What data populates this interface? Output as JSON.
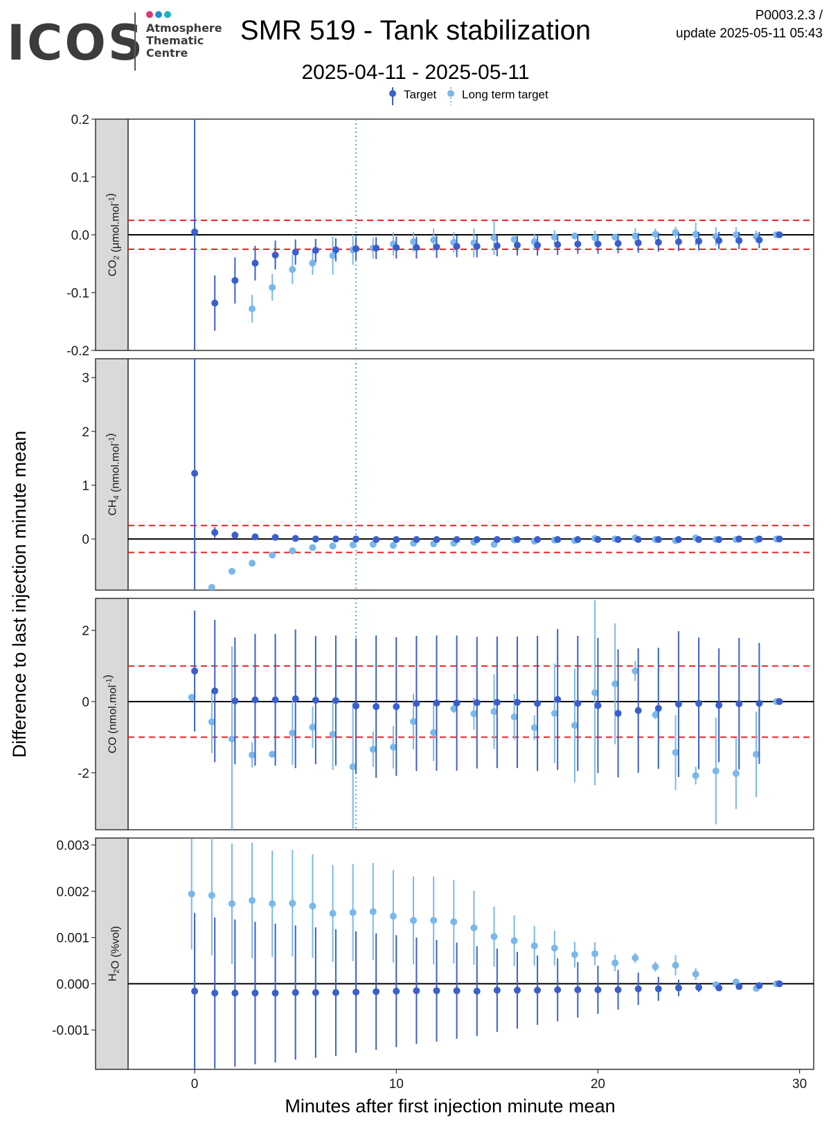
{
  "header": {
    "logo_text": "ICOS",
    "logo_sub": [
      "Atmosphere",
      "Thematic",
      "Centre"
    ],
    "logo_dot_colors": [
      "#e0367a",
      "#1f8ed6",
      "#1fb0c8"
    ],
    "title": "SMR 519 - Tank stabilization",
    "date_range": "2025-04-11 - 2025-05-11",
    "product_code": "P0003.2.3 /",
    "update": "update  2025-05-11 05:43"
  },
  "chart_data": {
    "type": "scatter",
    "legend": {
      "position": "top",
      "entries": [
        {
          "name": "Target",
          "color": "#3a5fcd"
        },
        {
          "name": "Long term target",
          "color": "#79b8ea"
        }
      ]
    },
    "xlabel": "Minutes after first injection minute mean",
    "ylabel": "Difference to last injection minute mean",
    "xlim": [
      -3.3,
      30.7
    ],
    "xticks": [
      0,
      10,
      20,
      30
    ],
    "vline_x": 8,
    "colors": {
      "target": "#3a5fcd",
      "long_term": "#79b8ea",
      "threshold": "#ee1c1c",
      "vline": "#5aaaf0"
    },
    "panels": [
      {
        "strip_label": "CO2 (µmol.mol-1)",
        "strip_parts": [
          [
            "CO",
            ""
          ],
          [
            "2",
            "sub"
          ],
          [
            " (µmol.mol",
            ""
          ],
          [
            "-1",
            "sup"
          ],
          [
            ")",
            ""
          ]
        ],
        "ylim": [
          -0.2,
          0.2
        ],
        "yticks": [
          -0.2,
          -0.1,
          0.0,
          0.1,
          0.2
        ],
        "ytick_labels": [
          "-0.2",
          "-0.1",
          "0.0",
          "0.1",
          "0.2"
        ],
        "threshold": 0.025,
        "vline": true,
        "target": {
          "x": [
            0,
            1,
            2,
            3,
            4,
            5,
            6,
            7,
            8,
            9,
            10,
            11,
            12,
            13,
            14,
            15,
            16,
            17,
            18,
            19,
            20,
            21,
            22,
            23,
            24,
            25,
            26,
            27,
            28,
            29
          ],
          "y": [
            0.005,
            -0.118,
            -0.079,
            -0.049,
            -0.035,
            -0.03,
            -0.027,
            -0.026,
            -0.024,
            -0.023,
            -0.022,
            -0.022,
            -0.021,
            -0.02,
            -0.02,
            -0.019,
            -0.018,
            -0.018,
            -0.017,
            -0.016,
            -0.016,
            -0.015,
            -0.014,
            -0.013,
            -0.012,
            -0.011,
            -0.01,
            -0.01,
            -0.009,
            0.0
          ],
          "err": [
            0.25,
            0.048,
            0.04,
            0.03,
            0.025,
            0.022,
            0.02,
            0.02,
            0.02,
            0.019,
            0.019,
            0.019,
            0.019,
            0.019,
            0.019,
            0.018,
            0.018,
            0.018,
            0.018,
            0.017,
            0.017,
            0.017,
            0.017,
            0.016,
            0.016,
            0.016,
            0.015,
            0.015,
            0.014,
            0.0
          ]
        },
        "long_term": {
          "x": [
            2.85,
            3.85,
            4.85,
            5.85,
            6.85,
            7.85,
            8.85,
            9.85,
            10.85,
            11.85,
            12.85,
            13.85,
            14.85,
            15.85,
            16.85,
            17.85,
            18.85,
            19.85,
            20.85,
            21.85,
            22.85,
            23.85,
            24.85,
            25.85,
            26.85,
            27.85,
            28.85
          ],
          "y": [
            -0.128,
            -0.091,
            -0.06,
            -0.049,
            -0.036,
            -0.026,
            -0.023,
            -0.016,
            -0.012,
            -0.009,
            -0.013,
            -0.014,
            -0.005,
            -0.008,
            -0.012,
            -0.004,
            -0.002,
            -0.005,
            -0.004,
            -0.002,
            0.001,
            0.004,
            0.001,
            -0.003,
            0.0,
            -0.003,
            0.0
          ],
          "err": [
            0.024,
            0.023,
            0.025,
            0.02,
            0.033,
            0.026,
            0.018,
            0.02,
            0.017,
            0.02,
            0.018,
            0.025,
            0.03,
            0.0,
            0.014,
            0.012,
            0.0,
            0.012,
            0.0,
            0.014,
            0.01,
            0.01,
            0.02,
            0.016,
            0.013,
            0.01,
            0.0
          ]
        }
      },
      {
        "strip_label": "CH4 (nmol.mol-1)",
        "strip_parts": [
          [
            "CH",
            ""
          ],
          [
            "4",
            "sub"
          ],
          [
            " (nmol.mol",
            ""
          ],
          [
            "-1",
            "sup"
          ],
          [
            ")",
            ""
          ]
        ],
        "ylim": [
          -0.95,
          3.35
        ],
        "yticks": [
          0,
          1,
          2,
          3
        ],
        "ytick_labels": [
          "0",
          "1",
          "2",
          "3"
        ],
        "threshold": 0.25,
        "vline": true,
        "target": {
          "x": [
            0,
            1,
            2,
            3,
            4,
            5,
            6,
            7,
            8,
            9,
            10,
            11,
            12,
            13,
            14,
            15,
            16,
            17,
            18,
            19,
            20,
            21,
            22,
            23,
            24,
            25,
            26,
            27,
            28,
            29
          ],
          "y": [
            1.22,
            0.12,
            0.07,
            0.04,
            0.03,
            0.01,
            0.0,
            0.0,
            0.0,
            -0.01,
            -0.01,
            -0.01,
            -0.01,
            -0.01,
            -0.01,
            -0.01,
            -0.01,
            -0.01,
            -0.01,
            -0.01,
            -0.01,
            -0.01,
            -0.01,
            -0.01,
            -0.01,
            -0.01,
            -0.01,
            0.0,
            0.0,
            0.0
          ],
          "err": [
            4.5,
            0.1,
            0.07,
            0.06,
            0.06,
            0.06,
            0.06,
            0.06,
            0.06,
            0.06,
            0.06,
            0.06,
            0.06,
            0.06,
            0.06,
            0.06,
            0.06,
            0.06,
            0.06,
            0.06,
            0.06,
            0.06,
            0.06,
            0.06,
            0.06,
            0.06,
            0.06,
            0.05,
            0.05,
            0.0
          ]
        },
        "long_term": {
          "x": [
            0.85,
            1.85,
            2.85,
            3.85,
            4.85,
            5.85,
            6.85,
            7.85,
            8.85,
            9.85,
            10.85,
            11.85,
            12.85,
            13.85,
            14.85,
            15.85,
            16.85,
            17.85,
            18.85,
            19.85,
            20.85,
            21.85,
            22.85,
            23.85,
            24.85,
            25.85,
            26.85,
            27.85,
            28.85
          ],
          "y": [
            -0.9,
            -0.6,
            -0.45,
            -0.3,
            -0.22,
            -0.16,
            -0.13,
            -0.11,
            -0.1,
            -0.12,
            -0.08,
            -0.09,
            -0.08,
            -0.06,
            -0.1,
            -0.02,
            -0.04,
            -0.02,
            -0.03,
            0.01,
            0.0,
            0.02,
            -0.01,
            -0.03,
            0.02,
            -0.01,
            -0.01,
            -0.02,
            0.0
          ],
          "err": [
            0,
            0,
            0,
            0,
            0,
            0,
            0,
            0,
            0,
            0,
            0,
            0,
            0,
            0,
            0,
            0,
            0,
            0,
            0,
            0,
            0,
            0,
            0,
            0,
            0,
            0,
            0,
            0,
            0
          ]
        }
      },
      {
        "strip_label": "CO (nmol.mol-1)",
        "strip_parts": [
          [
            "CO (nmol.mol",
            ""
          ],
          [
            "-1",
            "sup"
          ],
          [
            ")",
            ""
          ]
        ],
        "ylim": [
          -3.6,
          2.9
        ],
        "yticks": [
          -2,
          0,
          2
        ],
        "ytick_labels": [
          "-2",
          "0",
          "2"
        ],
        "threshold": 1.0,
        "vline": true,
        "target": {
          "x": [
            0,
            1,
            2,
            3,
            4,
            5,
            6,
            7,
            8,
            9,
            10,
            11,
            12,
            13,
            14,
            15,
            16,
            17,
            18,
            19,
            20,
            21,
            22,
            23,
            24,
            25,
            26,
            27,
            28,
            29
          ],
          "y": [
            0.86,
            0.3,
            0.02,
            0.05,
            0.05,
            0.08,
            0.04,
            0.03,
            -0.12,
            -0.14,
            -0.14,
            -0.05,
            -0.04,
            -0.04,
            -0.03,
            -0.02,
            -0.02,
            -0.05,
            0.06,
            -0.05,
            -0.11,
            -0.33,
            -0.25,
            -0.19,
            -0.07,
            -0.05,
            -0.1,
            -0.06,
            -0.05,
            0.0
          ],
          "err": [
            1.7,
            2.0,
            1.78,
            1.85,
            1.85,
            1.95,
            1.8,
            1.83,
            1.9,
            2.0,
            1.95,
            1.9,
            1.9,
            1.9,
            1.85,
            1.85,
            1.85,
            1.9,
            1.98,
            1.9,
            1.9,
            1.8,
            1.75,
            1.7,
            2.05,
            1.85,
            1.6,
            1.85,
            1.7,
            0.0
          ]
        },
        "long_term": {
          "x": [
            -0.15,
            0.85,
            1.85,
            2.85,
            3.85,
            4.85,
            5.85,
            6.85,
            7.85,
            8.85,
            9.85,
            10.85,
            11.85,
            12.85,
            13.85,
            14.85,
            15.85,
            16.85,
            17.85,
            18.85,
            19.85,
            20.85,
            21.85,
            22.85,
            23.85,
            24.85,
            25.85,
            26.85,
            27.85,
            28.85
          ],
          "y": [
            0.12,
            -0.57,
            -1.05,
            -1.5,
            -1.48,
            -0.88,
            -0.72,
            -0.92,
            -1.83,
            -1.34,
            -1.28,
            -0.56,
            -0.87,
            -0.2,
            -0.34,
            -0.28,
            -0.43,
            -0.73,
            -0.33,
            -0.67,
            0.25,
            0.5,
            0.86,
            -0.37,
            -1.43,
            -2.08,
            -1.95,
            -2.02,
            -1.48,
            0.0
          ],
          "err": [
            0.0,
            0.88,
            2.6,
            0.35,
            0.0,
            0.9,
            0.58,
            1.0,
            1.8,
            0.5,
            0.6,
            0.78,
            0.8,
            0.12,
            0.45,
            1.05,
            0.65,
            0.35,
            1.4,
            1.6,
            2.6,
            1.7,
            0.28,
            0.12,
            1.05,
            0.25,
            1.5,
            1.0,
            1.2,
            0.0
          ]
        }
      },
      {
        "strip_label": "H2O (%vol)",
        "strip_parts": [
          [
            "H",
            ""
          ],
          [
            "2",
            "sub"
          ],
          [
            "O (%vol)",
            ""
          ]
        ],
        "ylim": [
          -0.00185,
          0.00315
        ],
        "yticks": [
          -0.001,
          0.0,
          0.001,
          0.002,
          0.003
        ],
        "ytick_labels": [
          "-0.001",
          "0.000",
          "0.001",
          "0.002",
          "0.003"
        ],
        "threshold": null,
        "vline": false,
        "target": {
          "x": [
            0,
            1,
            2,
            3,
            4,
            5,
            6,
            7,
            8,
            9,
            10,
            11,
            12,
            13,
            14,
            15,
            16,
            17,
            18,
            19,
            20,
            21,
            22,
            23,
            24,
            25,
            26,
            27,
            28,
            29
          ],
          "y": [
            -0.00016,
            -0.0002,
            -0.0002,
            -0.0002,
            -0.0002,
            -0.00019,
            -0.00019,
            -0.00019,
            -0.00018,
            -0.00017,
            -0.00016,
            -0.00015,
            -0.00015,
            -0.00015,
            -0.00016,
            -0.00014,
            -0.00014,
            -0.00014,
            -0.00013,
            -0.00013,
            -0.00013,
            -0.00013,
            -0.00011,
            -0.00011,
            -9e-05,
            -8e-05,
            -9e-05,
            -6e-05,
            -4e-05,
            0.0
          ],
          "err": [
            0.00169,
            0.00163,
            0.00159,
            0.00154,
            0.0015,
            0.00145,
            0.00141,
            0.00137,
            0.00131,
            0.00126,
            0.00121,
            0.00115,
            0.0011,
            0.00104,
            0.00097,
            0.0009,
            0.00083,
            0.00075,
            0.00068,
            0.0006,
            0.00052,
            0.00043,
            0.00035,
            0.00026,
            0.00018,
            0.0001,
            6e-05,
            5e-05,
            4e-05,
            0.0
          ]
        },
        "long_term": {
          "x": [
            -0.15,
            0.85,
            1.85,
            2.85,
            3.85,
            4.85,
            5.85,
            6.85,
            7.85,
            8.85,
            9.85,
            10.85,
            11.85,
            12.85,
            13.85,
            14.85,
            15.85,
            16.85,
            17.85,
            18.85,
            19.85,
            20.85,
            21.85,
            22.85,
            23.85,
            24.85,
            25.85,
            26.85,
            27.85,
            28.85
          ],
          "y": [
            0.00194,
            0.00191,
            0.00173,
            0.0018,
            0.00173,
            0.00174,
            0.00168,
            0.00152,
            0.00154,
            0.00156,
            0.00146,
            0.00137,
            0.00137,
            0.00134,
            0.00121,
            0.00102,
            0.00093,
            0.00082,
            0.00077,
            0.00063,
            0.00065,
            0.00045,
            0.00056,
            0.00037,
            0.0004,
            0.00021,
            -2e-05,
            4e-05,
            -0.0001,
            0.0
          ],
          "err": [
            0.0012,
            0.0013,
            0.0013,
            0.00125,
            0.00115,
            0.00115,
            0.00112,
            0.00105,
            0.00105,
            0.00105,
            0.001,
            0.00095,
            0.00095,
            0.0009,
            0.0008,
            0.00065,
            0.00055,
            0.00043,
            0.00038,
            0.00028,
            0.00025,
            0.00018,
            0.00011,
            0.00011,
            0.00022,
            0.00013,
            7e-05,
            3e-05,
            7e-05,
            0.0
          ]
        }
      }
    ]
  }
}
